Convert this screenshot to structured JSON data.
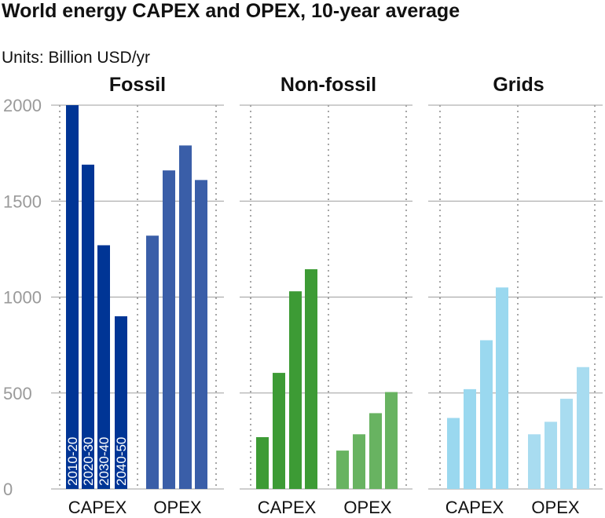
{
  "title": "World energy CAPEX and OPEX, 10-year average",
  "units": "Units: Billion USD/yr",
  "chart_data": {
    "type": "bar",
    "title": "World energy CAPEX and OPEX, 10-year average",
    "ylabel": "Billion USD/yr",
    "ylim": [
      0,
      2000
    ],
    "yticks": [
      0,
      500,
      1000,
      1500,
      2000
    ],
    "periods": [
      "2010-20",
      "2020-30",
      "2030-40",
      "2040-50"
    ],
    "groups": [
      "CAPEX",
      "OPEX"
    ],
    "panels": [
      {
        "name": "Fossil",
        "series": [
          {
            "name": "CAPEX",
            "color": "#003595",
            "values": [
              2000,
              1690,
              1270,
              900
            ]
          },
          {
            "name": "OPEX",
            "color": "#3a5ea8",
            "values": [
              1320,
              1660,
              1790,
              1610
            ]
          }
        ]
      },
      {
        "name": "Non-fossil",
        "series": [
          {
            "name": "CAPEX",
            "color": "#3d9b35",
            "values": [
              270,
              605,
              1030,
              1145
            ]
          },
          {
            "name": "OPEX",
            "color": "#68b361",
            "values": [
              200,
              285,
              395,
              505
            ]
          }
        ]
      },
      {
        "name": "Grids",
        "series": [
          {
            "name": "CAPEX",
            "color": "#9ad8ef",
            "values": [
              370,
              520,
              775,
              1050
            ]
          },
          {
            "name": "OPEX",
            "color": "#a8dcf0",
            "values": [
              285,
              350,
              470,
              635
            ]
          }
        ]
      }
    ]
  }
}
